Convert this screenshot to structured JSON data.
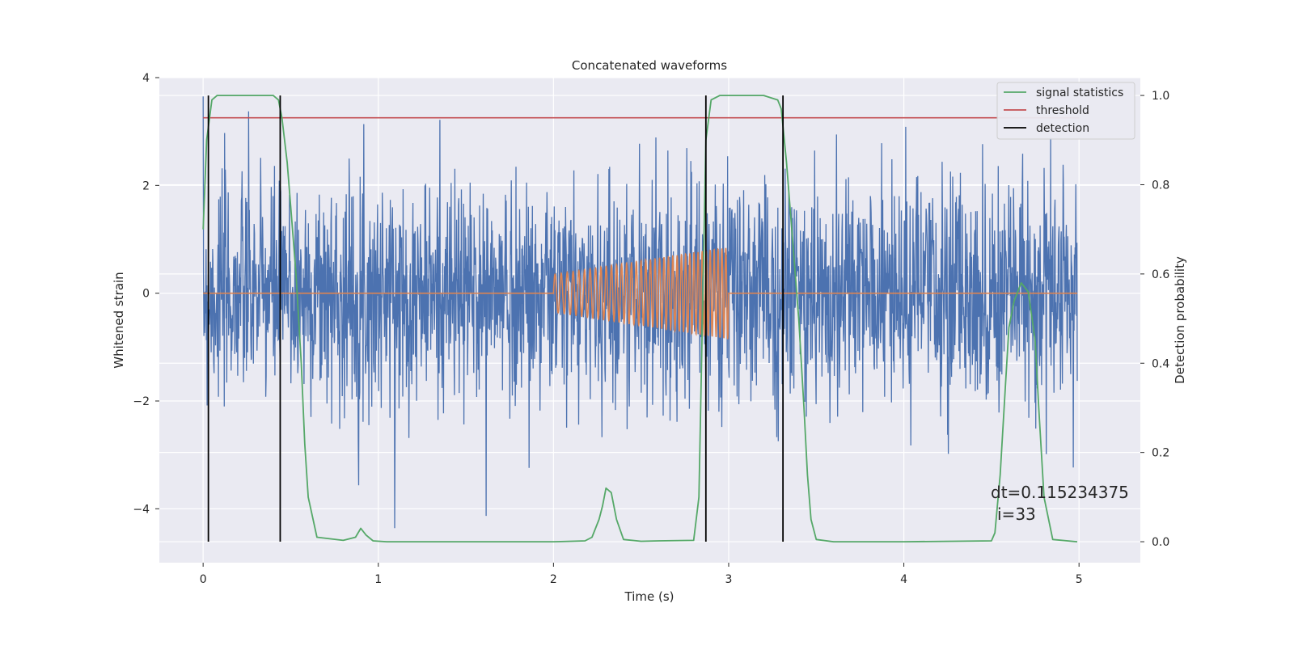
{
  "chart_data": {
    "type": "line",
    "title": "Concatenated waveforms",
    "xlabel": "Time (s)",
    "ylabel": "Whitened strain",
    "y2label": "Detection probability",
    "xlim": [
      -0.25,
      5.35
    ],
    "ylim": [
      -5.0,
      4.0
    ],
    "y2lim": [
      -0.047,
      1.04
    ],
    "x_ticks": [
      0,
      1,
      2,
      3,
      4,
      5
    ],
    "x_tick_labels": [
      "0",
      "1",
      "2",
      "3",
      "4",
      "5"
    ],
    "y_ticks": [
      -4,
      -2,
      0,
      2,
      4
    ],
    "y_tick_labels": [
      "−4",
      "−2",
      "0",
      "2",
      "4"
    ],
    "y2_ticks": [
      0.0,
      0.2,
      0.4,
      0.6,
      0.8,
      1.0
    ],
    "y2_tick_labels": [
      "0.0",
      "0.2",
      "0.4",
      "0.6",
      "0.8",
      "1.0"
    ],
    "grid": true,
    "legend_position": "top-right",
    "colors": {
      "strain": "#4c72b0",
      "injected_signal": "#dd8452",
      "signal_statistics": "#55a868",
      "threshold": "#c44e52",
      "detection": "#000000",
      "background": "#eaeaf2"
    },
    "legend": [
      "signal statistics",
      "threshold",
      "detection"
    ],
    "strain": {
      "axis": "left",
      "x_range": [
        0,
        4.99
      ],
      "typical_amplitude": 1.2,
      "max": 3.65,
      "min": -4.7
    },
    "injected_signal": {
      "axis": "left",
      "x_range": [
        2.0,
        3.0
      ],
      "start_amplitude": 0.35,
      "end_amplitude": 0.85,
      "baseline": 0
    },
    "signal_statistics": {
      "axis": "right",
      "x": [
        0.0,
        0.02,
        0.05,
        0.08,
        0.1,
        0.2,
        0.4,
        0.43,
        0.45,
        0.48,
        0.5,
        0.53,
        0.56,
        0.58,
        0.6,
        0.65,
        0.8,
        0.87,
        0.9,
        0.93,
        0.97,
        1.05,
        1.5,
        2.0,
        2.18,
        2.22,
        2.26,
        2.28,
        2.3,
        2.33,
        2.36,
        2.4,
        2.5,
        2.6,
        2.8,
        2.83,
        2.85,
        2.87,
        2.9,
        2.95,
        3.0,
        3.2,
        3.28,
        3.3,
        3.33,
        3.36,
        3.4,
        3.43,
        3.45,
        3.47,
        3.5,
        3.6,
        4.0,
        4.5,
        4.52,
        4.55,
        4.58,
        4.6,
        4.63,
        4.67,
        4.71,
        4.75,
        4.77,
        4.8,
        4.85,
        4.99
      ],
      "y": [
        0.7,
        0.9,
        0.99,
        1.0,
        1.0,
        1.0,
        1.0,
        0.99,
        0.95,
        0.85,
        0.75,
        0.6,
        0.4,
        0.22,
        0.1,
        0.01,
        0.003,
        0.01,
        0.03,
        0.015,
        0.002,
        0.0,
        0.0,
        0.0,
        0.002,
        0.01,
        0.05,
        0.08,
        0.12,
        0.11,
        0.05,
        0.005,
        0.001,
        0.002,
        0.003,
        0.1,
        0.5,
        0.9,
        0.99,
        1.0,
        1.0,
        1.0,
        0.99,
        0.97,
        0.85,
        0.7,
        0.5,
        0.3,
        0.15,
        0.05,
        0.005,
        0.0,
        0.0,
        0.002,
        0.02,
        0.15,
        0.35,
        0.48,
        0.54,
        0.58,
        0.56,
        0.45,
        0.3,
        0.1,
        0.005,
        0.0
      ]
    },
    "threshold": {
      "axis": "right",
      "x_range": [
        0,
        5.0
      ],
      "value": 0.95
    },
    "detections": [
      0.03,
      0.44,
      2.87,
      3.31
    ],
    "annotation": {
      "line1": "dt=0.115234375",
      "line2": "i=33"
    }
  }
}
